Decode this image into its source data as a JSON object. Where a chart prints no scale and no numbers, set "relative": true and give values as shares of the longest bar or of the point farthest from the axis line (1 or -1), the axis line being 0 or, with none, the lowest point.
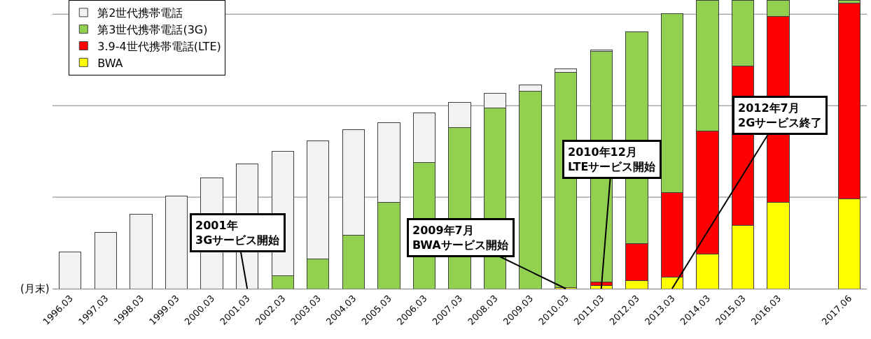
{
  "chart_data": {
    "type": "bar",
    "stacked": true,
    "relative": true,
    "legend": "top left",
    "ref_lines": [
      {
        "axis": "y",
        "value": 0.317,
        "color": "#808080"
      },
      {
        "axis": "y",
        "value": 0.634,
        "color": "#808080"
      },
      {
        "axis": "y",
        "value": 0.951,
        "color": "#808080"
      }
    ],
    "categories": [
      "1996.03",
      "1997.03",
      "1998.03",
      "1999.03",
      "2000.03",
      "2001.03",
      "2002.03",
      "2003.03",
      "2004.03",
      "2005.03",
      "2006.03",
      "2007.03",
      "2008.03",
      "2009.03",
      "2010.03",
      "2011.03",
      "2012.03",
      "2013.03",
      "2014.03",
      "2015.03",
      "2016.03",
      null,
      "2017.06"
    ],
    "series": [
      {
        "name": "BWA",
        "color": "#ffff00",
        "values": [
          null,
          null,
          null,
          null,
          null,
          null,
          null,
          null,
          null,
          null,
          null,
          null,
          null,
          null,
          0.003,
          0.012,
          0.027,
          0.041,
          0.119,
          0.218,
          0.298,
          null,
          0.312
        ]
      },
      {
        "name": "3.9-4世代携帯電話(LTE)",
        "color": "#ff0000",
        "values": [
          null,
          null,
          null,
          null,
          null,
          null,
          null,
          null,
          null,
          null,
          null,
          null,
          null,
          null,
          null,
          0.012,
          0.13,
          0.293,
          0.428,
          0.552,
          0.646,
          null,
          0.676
        ]
      },
      {
        "name": "第3世代携帯電話(3G)",
        "color": "#92d050",
        "values": [
          null,
          null,
          null,
          null,
          null,
          null,
          0.044,
          0.102,
          0.186,
          0.3,
          0.438,
          0.559,
          0.625,
          0.685,
          0.746,
          0.797,
          0.732,
          0.62,
          0.453,
          0.23,
          0.056,
          null,
          0.012
        ]
      },
      {
        "name": "第2世代携帯電話",
        "color": "#f2f2f2",
        "values": [
          0.128,
          0.196,
          0.259,
          0.32,
          0.383,
          0.433,
          0.431,
          0.409,
          0.366,
          0.276,
          0.172,
          0.087,
          0.051,
          0.02,
          0.012,
          0.005,
          null,
          null,
          null,
          null,
          null,
          null,
          null
        ]
      }
    ],
    "annotations": [
      {
        "text": "2001年\n3Gサービス開始",
        "x": "2001.03",
        "y": 0
      },
      {
        "text": "2009年7月\nBWAサービス開始",
        "x": "2010.03",
        "y": 0
      },
      {
        "text": "2010年12月\nLTEサービス開始",
        "x": "2011.03",
        "y": 0
      },
      {
        "text": "2012年7月\n2Gサービス終了",
        "x": "2013.03",
        "y": 0
      },
      "(月末)"
    ]
  }
}
